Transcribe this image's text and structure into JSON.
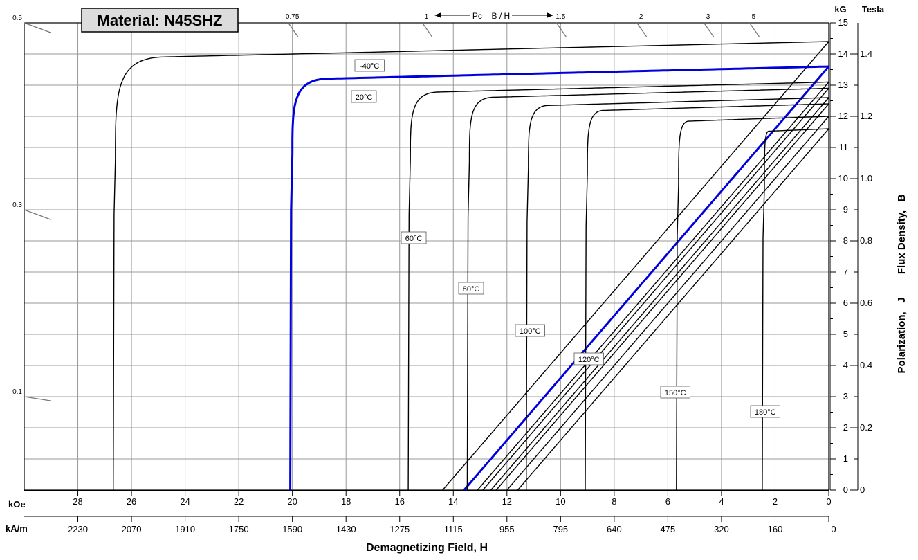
{
  "chart_data": {
    "type": "line",
    "material_label": "Material: N45SHZ",
    "xlabel": "Demagnetizing Field, H",
    "ylabel": "Polarization,   J        Flux Density,   B",
    "x_unit_koe": "kOe",
    "x_unit_kam": "kA/m",
    "y_unit_kg": "kG",
    "y_unit_tesla": "Tesla",
    "xlim_koe": [
      0,
      30
    ],
    "ylim_kg": [
      0,
      15
    ],
    "koe_ticks": [
      "28",
      "26",
      "24",
      "22",
      "20",
      "18",
      "16",
      "14",
      "12",
      "10",
      "8",
      "6",
      "4",
      "2",
      "0"
    ],
    "kam_ticks": [
      "2230",
      "2070",
      "1910",
      "1750",
      "1590",
      "1430",
      "1275",
      "1115",
      "955",
      "795",
      "640",
      "475",
      "320",
      "160",
      "0"
    ],
    "kg_ticks": [
      "0",
      "1",
      "2",
      "3",
      "4",
      "5",
      "6",
      "7",
      "8",
      "9",
      "10",
      "11",
      "12",
      "13",
      "14",
      "15"
    ],
    "tesla_ticks": [
      "0",
      "0.2",
      "0.4",
      "0.6",
      "0.8",
      "1.0",
      "1.2",
      "1.4"
    ],
    "pc_label": "Pc = B / H",
    "pc_top_labels": [
      "1",
      "1.5",
      "2",
      "3",
      "5"
    ],
    "pc_top_extra": "0.75",
    "pc_left_labels": [
      "0.5",
      "0.3",
      "0.1"
    ],
    "series": [
      {
        "name": "-40°C",
        "color": "#000000",
        "hci_koe": 26.6,
        "br_kg": 14.4,
        "knee_kg": 11.8,
        "plateau_slope": 0.02
      },
      {
        "name": "20°C",
        "color": "#0000dd",
        "hci_koe": 20.0,
        "br_kg": 13.6,
        "knee_kg": 12.0,
        "plateau_slope": 0.021
      },
      {
        "name": "60°C",
        "color": "#000000",
        "hci_koe": 15.6,
        "br_kg": 13.1,
        "knee_kg": 11.8,
        "plateau_slope": 0.022
      },
      {
        "name": "80°C",
        "color": "#000000",
        "hci_koe": 13.4,
        "br_kg": 12.9,
        "knee_kg": 11.7,
        "plateau_slope": 0.023
      },
      {
        "name": "100°C",
        "color": "#000000",
        "hci_koe": 11.2,
        "br_kg": 12.6,
        "knee_kg": 11.5,
        "plateau_slope": 0.024
      },
      {
        "name": "120°C",
        "color": "#000000",
        "hci_koe": 9.0,
        "br_kg": 12.4,
        "knee_kg": 11.3,
        "plateau_slope": 0.025
      },
      {
        "name": "150°C",
        "color": "#000000",
        "hci_koe": 5.6,
        "br_kg": 12.0,
        "knee_kg": 10.9,
        "plateau_slope": 0.03
      },
      {
        "name": "180°C",
        "color": "#000000",
        "hci_koe": 2.4,
        "br_kg": 11.6,
        "knee_kg": 10.8,
        "plateau_slope": 0.035
      }
    ],
    "b_lines": [
      {
        "color": "#000000",
        "br_kg": 14.4
      },
      {
        "color": "#0000dd",
        "br_kg": 13.6
      },
      {
        "color": "#000000",
        "br_kg": 13.1
      },
      {
        "color": "#000000",
        "br_kg": 12.9
      },
      {
        "color": "#000000",
        "br_kg": 12.6
      },
      {
        "color": "#000000",
        "br_kg": 12.4
      },
      {
        "color": "#000000",
        "br_kg": 12.0
      },
      {
        "color": "#000000",
        "br_kg": 11.6
      }
    ],
    "grid": true
  }
}
